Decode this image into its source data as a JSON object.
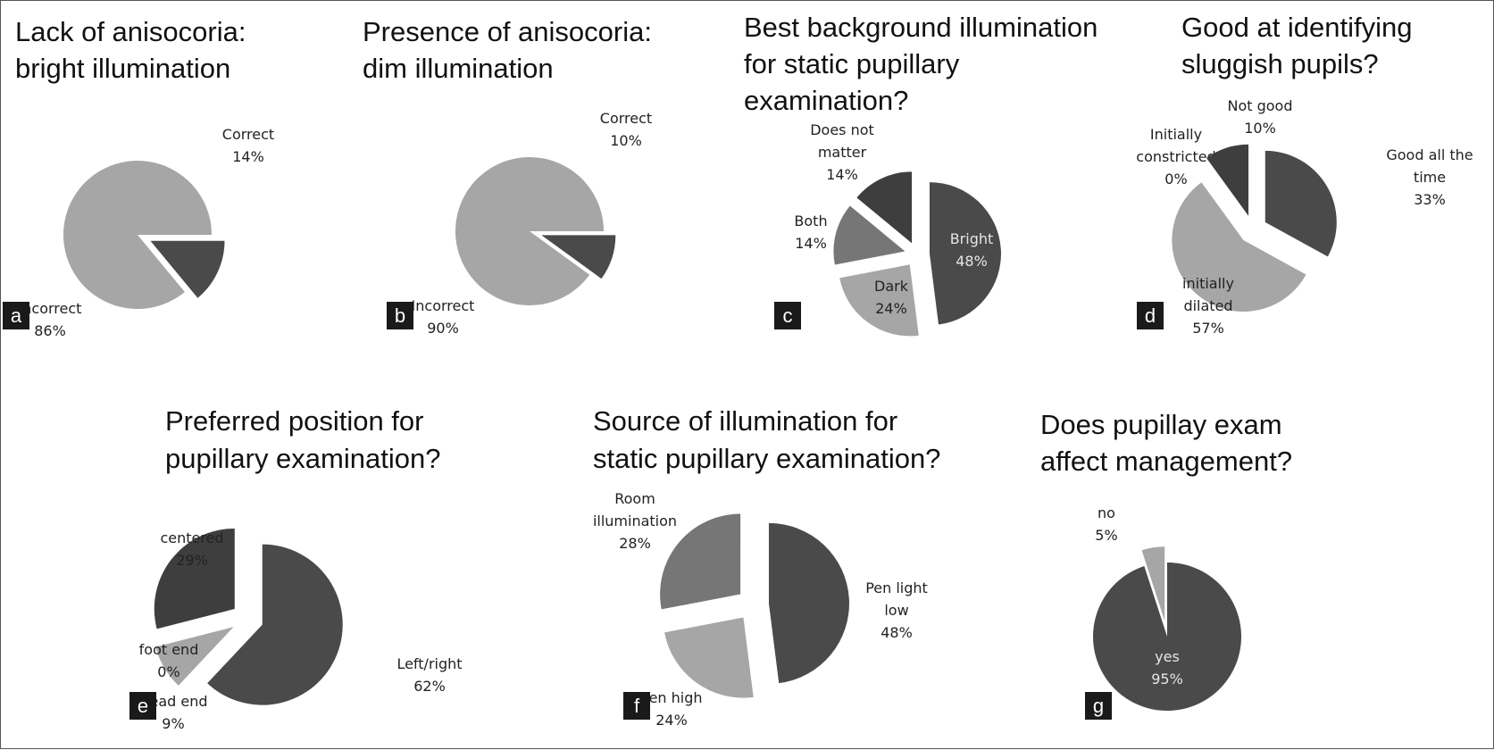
{
  "colors": {
    "dark": "#4a4a4a",
    "darker": "#3e3e3e",
    "mid": "#767676",
    "light": "#a6a6a6",
    "badge": "#1a1a1a"
  },
  "chart_data": [
    {
      "type": "pie",
      "panel": "a",
      "title": [
        "Lack of anisocoria:",
        "bright illumination"
      ],
      "slices": [
        {
          "label": "Correct",
          "pct": "14%",
          "value": 14,
          "color": "dark",
          "exploded": true
        },
        {
          "label": "Incorrect",
          "pct": "86%",
          "value": 86,
          "color": "light",
          "exploded": false
        }
      ]
    },
    {
      "type": "pie",
      "panel": "b",
      "title": [
        "Presence of anisocoria:",
        "dim illumination"
      ],
      "slices": [
        {
          "label": "Correct",
          "pct": "10%",
          "value": 10,
          "color": "dark",
          "exploded": true
        },
        {
          "label": "Incorrect",
          "pct": "90%",
          "value": 90,
          "color": "light",
          "exploded": false
        }
      ]
    },
    {
      "type": "pie",
      "panel": "c",
      "title": [
        "Best background illumination",
        "for  static  pupillary",
        "examination?"
      ],
      "slices": [
        {
          "label": "Bright",
          "pct": "48%",
          "value": 48,
          "color": "dark",
          "exploded": true
        },
        {
          "label": "Dark",
          "pct": "24%",
          "value": 24,
          "color": "light",
          "exploded": true
        },
        {
          "label": "Both",
          "pct": "14%",
          "value": 14,
          "color": "mid",
          "exploded": true
        },
        {
          "label": "Does not matter",
          "label_lines": [
            "Does not",
            "matter"
          ],
          "pct": "14%",
          "value": 14,
          "color": "darker",
          "exploded": true
        }
      ]
    },
    {
      "type": "pie",
      "panel": "d",
      "title": [
        "Good at identifying",
        "sluggish pupils?"
      ],
      "slices": [
        {
          "label": "Good all the time",
          "label_lines": [
            "Good all the",
            "time"
          ],
          "pct": "33%",
          "value": 33,
          "color": "dark",
          "exploded": true
        },
        {
          "label": "initially dilated",
          "label_lines": [
            "initially",
            "dilated"
          ],
          "pct": "57%",
          "value": 57,
          "color": "light",
          "exploded": true
        },
        {
          "label": "Initially constricted",
          "label_lines": [
            "Initially",
            "constricted"
          ],
          "pct": "0%",
          "value": 0,
          "color": "mid",
          "exploded": true
        },
        {
          "label": "Not good",
          "pct": "10%",
          "value": 10,
          "color": "darker",
          "exploded": true
        }
      ]
    },
    {
      "type": "pie",
      "panel": "e",
      "title": [
        "Preferred position for",
        "pupillary examination?"
      ],
      "slices": [
        {
          "label": "Left/right",
          "pct": "62%",
          "value": 62,
          "color": "dark",
          "exploded": true
        },
        {
          "label": "Head end",
          "pct": "9%",
          "value": 9,
          "color": "light",
          "exploded": true
        },
        {
          "label": "foot end",
          "pct": "0%",
          "value": 0,
          "color": "mid",
          "exploded": true
        },
        {
          "label": "centered",
          "pct": "29%",
          "value": 29,
          "color": "darker",
          "exploded": true
        }
      ]
    },
    {
      "type": "pie",
      "panel": "f",
      "title": [
        "Source of illumination for",
        "static  pupillary examination?"
      ],
      "slices": [
        {
          "label": "Pen light low",
          "label_lines": [
            "Pen light",
            "low"
          ],
          "pct": "48%",
          "value": 48,
          "color": "dark",
          "exploded": true
        },
        {
          "label": "Pen high",
          "pct": "24%",
          "value": 24,
          "color": "light",
          "exploded": true
        },
        {
          "label": "Room illumination",
          "label_lines": [
            "Room",
            "illumination"
          ],
          "pct": "28%",
          "value": 28,
          "color": "mid",
          "exploded": true
        }
      ]
    },
    {
      "type": "pie",
      "panel": "g",
      "title": [
        "Does pupillay exam",
        "affect management?"
      ],
      "slices": [
        {
          "label": "yes",
          "pct": "95%",
          "value": 95,
          "color": "dark",
          "exploded": false
        },
        {
          "label": "no",
          "pct": "5%",
          "value": 5,
          "color": "light",
          "exploded": true
        }
      ]
    }
  ]
}
